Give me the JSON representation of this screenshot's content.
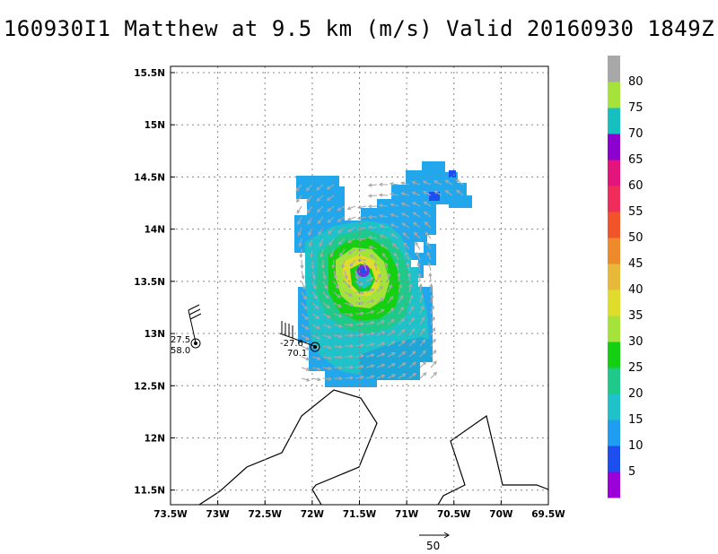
{
  "title": "160930I1 Matthew at 9.5 km (m/s) Valid 20160930 1849Z",
  "map": {
    "lat_labels": [
      "15.5N",
      "15N",
      "14.5N",
      "14N",
      "13.5N",
      "13N",
      "12.5N",
      "12N",
      "11.5N"
    ],
    "lon_labels": [
      "73.5W",
      "73W",
      "72.5W",
      "72W",
      "71.5W",
      "71W",
      "70.5W",
      "70W",
      "69.5W"
    ]
  },
  "colorbar": {
    "labels": [
      "5",
      "10",
      "15",
      "20",
      "25",
      "30",
      "35",
      "40",
      "45",
      "50",
      "55",
      "60",
      "65",
      "70",
      "75",
      "80"
    ],
    "colors": [
      "#9b00d9",
      "#1d4ef0",
      "#1f9df0",
      "#1fc2c8",
      "#1ec98a",
      "#15cf13",
      "#a6e23c",
      "#e0dc2c",
      "#e7b83a",
      "#ee8a2b",
      "#f0542b",
      "#ef2d5a",
      "#e3147b",
      "#8c00d0",
      "#17c0c0",
      "#a6e23c",
      "#a8a8a8"
    ]
  },
  "observations": [
    {
      "upper": "27.5",
      "lower": "58.0",
      "barb": "west-obs-barb"
    },
    {
      "upper": "-27.6",
      "lower": "70.1",
      "barb": "center-obs-barb"
    }
  ],
  "reference_vector": {
    "label": "50"
  }
}
